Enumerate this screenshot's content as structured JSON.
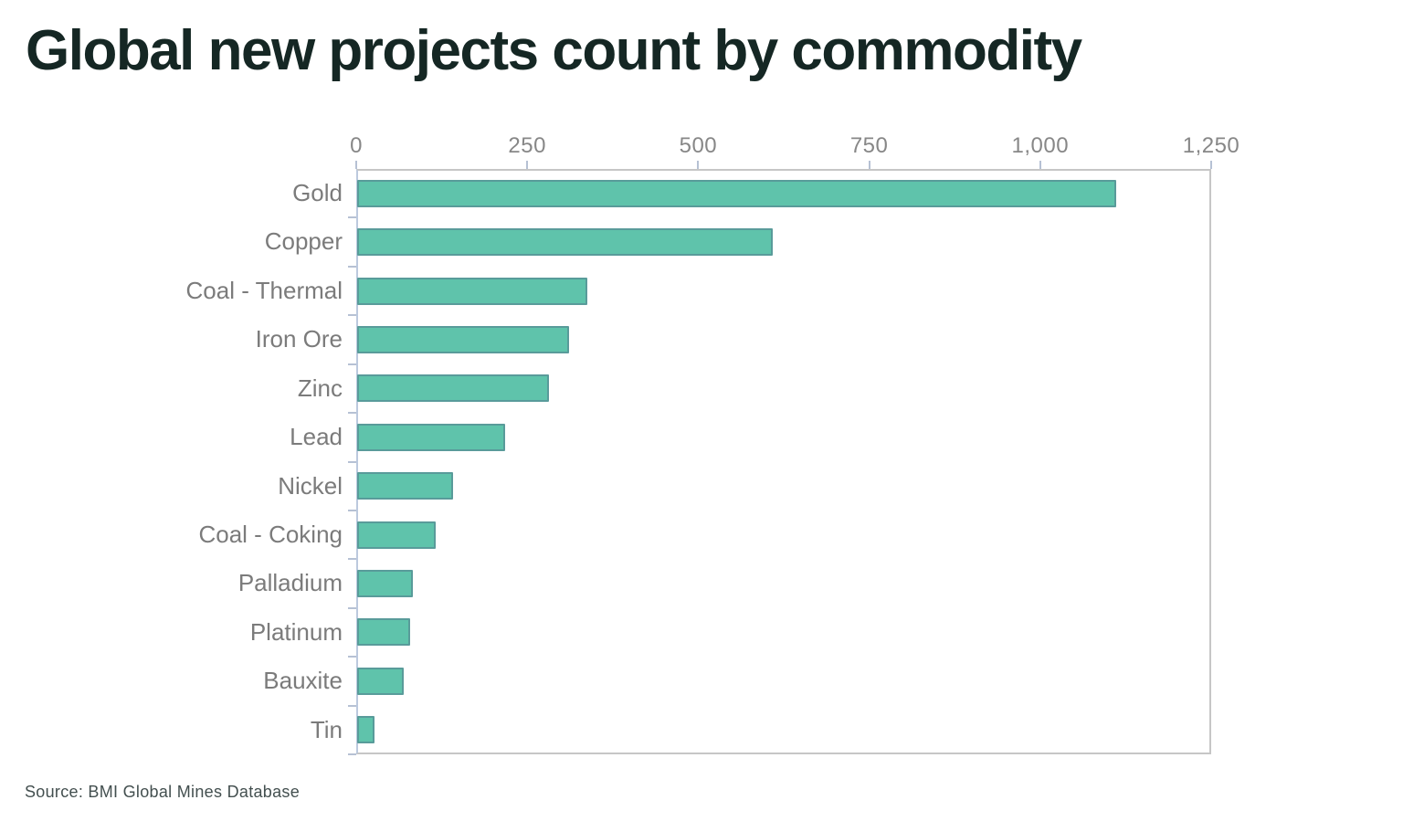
{
  "page": {
    "background_color": "#ffffff"
  },
  "chart_data": {
    "type": "bar",
    "orientation": "horizontal",
    "title": "Global new projects count by commodity",
    "categories": [
      "Gold",
      "Copper",
      "Coal - Thermal",
      "Iron Ore",
      "Zinc",
      "Lead",
      "Nickel",
      "Coal - Coking",
      "Palladium",
      "Platinum",
      "Bauxite",
      "Tin"
    ],
    "values": [
      1110,
      607,
      336,
      310,
      280,
      216,
      140,
      115,
      81,
      77,
      68,
      25
    ],
    "xlabel": "",
    "ylabel": "",
    "xlim": [
      0,
      1250
    ],
    "xticks": [
      0,
      250,
      500,
      750,
      1000,
      1250
    ],
    "xtick_labels": [
      "0",
      "250",
      "500",
      "750",
      "1,000",
      "1,250"
    ],
    "x_axis_position": "top",
    "grid": false,
    "legend_position": "none",
    "bar_color": "#5fc3ab",
    "bar_border_color": "#547a8c",
    "plot_border_color": "#c6c6c6",
    "y_axis_line_color": "#bcc9de",
    "tick_label_color": "#878787",
    "category_label_color": "#7b7b7b",
    "title_color": "#152724"
  },
  "footer": {
    "source": "Source: BMI Global Mines Database"
  }
}
